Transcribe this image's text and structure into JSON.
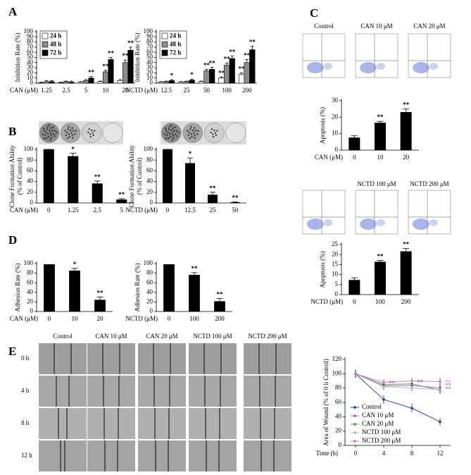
{
  "panels": [
    "A",
    "B",
    "C",
    "D",
    "E"
  ],
  "flow_labels_top": [
    "Control",
    "CAN 10 μM",
    "CAN 20 μM"
  ],
  "flow_labels_bottom": [
    "NCTD 100 μM",
    "NCTD 200 μM"
  ],
  "wound_columns": [
    "Control",
    "CAN 10 μM",
    "CAN 20 μM",
    "NCTD 100 μM",
    "NCTD 200 μM"
  ],
  "wound_rows": [
    "0 h",
    "4 h",
    "8 h",
    "12 h"
  ],
  "chart_data": [
    {
      "type": "bar",
      "ylabel": "Inhibition Rate (%)",
      "xlabel": "CAN (μM)",
      "categories": [
        "1.25",
        "2.5",
        "5",
        "10",
        "20"
      ],
      "ylim": [
        0,
        100
      ],
      "yticks": [
        0,
        10,
        20,
        30,
        40,
        50,
        60,
        70,
        80,
        90,
        100
      ],
      "series": [
        {
          "name": "24 h",
          "color": "#ffffff",
          "values": [
            1,
            1,
            2,
            3,
            5
          ],
          "errors": [
            1,
            1,
            1,
            1,
            2
          ],
          "significance": [
            null,
            null,
            null,
            null,
            null
          ]
        },
        {
          "name": "48 h",
          "color": "#8c8c8c",
          "values": [
            3,
            3,
            5,
            22,
            40
          ],
          "errors": [
            2,
            1,
            2,
            3,
            5
          ],
          "significance": [
            null,
            null,
            null,
            "**",
            "**"
          ]
        },
        {
          "name": "72 h",
          "color": "#000000",
          "values": [
            3,
            2,
            10,
            46,
            64
          ],
          "errors": [
            2,
            2,
            3,
            4,
            6
          ],
          "significance": [
            null,
            null,
            "**",
            "**",
            "**"
          ]
        }
      ]
    },
    {
      "type": "bar",
      "ylabel": "Inhibition Rate (%)",
      "xlabel": "NCTD (μM)",
      "categories": [
        "12.5",
        "25",
        "50",
        "100",
        "200"
      ],
      "ylim": [
        0,
        100
      ],
      "yticks": [
        0,
        10,
        20,
        30,
        40,
        50,
        60,
        70,
        80,
        90,
        100
      ],
      "series": [
        {
          "name": "24 h",
          "color": "#ffffff",
          "values": [
            2,
            2,
            3,
            10,
            17
          ],
          "errors": [
            1,
            1,
            1,
            2,
            3
          ],
          "significance": [
            null,
            null,
            null,
            "**",
            "**"
          ]
        },
        {
          "name": "48 h",
          "color": "#8c8c8c",
          "values": [
            3,
            3,
            24,
            35,
            40
          ],
          "errors": [
            1,
            1,
            3,
            4,
            6
          ],
          "significance": [
            null,
            null,
            "**",
            "**",
            "**"
          ]
        },
        {
          "name": "72 h",
          "color": "#000000",
          "values": [
            5,
            6,
            27,
            48,
            65
          ],
          "errors": [
            2,
            2,
            4,
            5,
            7
          ],
          "significance": [
            "*",
            "*",
            "**",
            "**",
            "**"
          ]
        }
      ]
    },
    {
      "type": "bar",
      "ylabel": [
        "Clone Formation Ability",
        "(% of Control)"
      ],
      "xlabel": "CAN (μM)",
      "categories": [
        "0",
        "1.25",
        "2.5",
        "5"
      ],
      "ylim": [
        0,
        100
      ],
      "yticks": [
        0,
        20,
        40,
        60,
        80,
        100
      ],
      "color": "#000000",
      "values": [
        100,
        87,
        36,
        6
      ],
      "errors": [
        0,
        6,
        5,
        2
      ],
      "significance": [
        null,
        "*",
        "**",
        "**"
      ]
    },
    {
      "type": "bar",
      "ylabel": [
        "Clone Formation Ability",
        "(% of Control)"
      ],
      "xlabel": "NCTD (μM)",
      "categories": [
        "0",
        "12.5",
        "25",
        "50"
      ],
      "ylim": [
        0,
        100
      ],
      "yticks": [
        0,
        20,
        40,
        60,
        80,
        100
      ],
      "color": "#000000",
      "values": [
        100,
        74,
        15,
        1
      ],
      "errors": [
        0,
        10,
        5,
        1
      ],
      "significance": [
        null,
        "*",
        "**",
        "**"
      ]
    },
    {
      "type": "bar",
      "ylabel": "Apoptosis (%)",
      "xlabel": "CAN (μM)",
      "categories": [
        "0",
        "10",
        "20"
      ],
      "ylim": [
        0,
        30
      ],
      "yticks": [
        0,
        10,
        20,
        30
      ],
      "color": "#000000",
      "values": [
        7.5,
        16.5,
        23
      ],
      "errors": [
        1.2,
        1,
        2
      ],
      "significance": [
        null,
        "**",
        "**"
      ]
    },
    {
      "type": "bar",
      "ylabel": "Apoptosis (%)",
      "xlabel": "NCTD (μM)",
      "categories": [
        "0",
        "100",
        "200"
      ],
      "ylim": [
        0,
        25
      ],
      "yticks": [
        0,
        5,
        10,
        15,
        20,
        25
      ],
      "color": "#000000",
      "values": [
        7.2,
        16.3,
        21.5
      ],
      "errors": [
        1.2,
        0.8,
        1.5
      ],
      "significance": [
        null,
        "**",
        "**"
      ]
    },
    {
      "type": "bar",
      "ylabel": "Adhesion Rate (%)",
      "xlabel": "CAN (μM)",
      "categories": [
        "0",
        "10",
        "20"
      ],
      "ylim": [
        0,
        100
      ],
      "yticks": [
        0,
        20,
        40,
        60,
        80,
        100
      ],
      "color": "#000000",
      "values": [
        98,
        85,
        24
      ],
      "errors": [
        0,
        5,
        6
      ],
      "significance": [
        null,
        "*",
        "**"
      ]
    },
    {
      "type": "bar",
      "ylabel": "Adhesion Rate (%)",
      "xlabel": "NCTD (μM)",
      "categories": [
        "0",
        "100",
        "200"
      ],
      "ylim": [
        0,
        100
      ],
      "yticks": [
        0,
        20,
        40,
        60,
        80,
        100
      ],
      "color": "#000000",
      "values": [
        98,
        76,
        21
      ],
      "errors": [
        0,
        5,
        6
      ],
      "significance": [
        null,
        "**",
        "**"
      ]
    },
    {
      "type": "line",
      "ylabel": "Area of Wound (% of 0 h Control)",
      "xlabel": "Time (h)",
      "x": [
        0,
        4,
        8,
        12
      ],
      "xlim": [
        -1.5,
        13.5
      ],
      "xticks": [
        0,
        4,
        8,
        12
      ],
      "ylim": [
        0,
        120
      ],
      "yticks": [
        0,
        20,
        40,
        60,
        80,
        100,
        120
      ],
      "series": [
        {
          "name": "Control",
          "color": "#3a3fa6",
          "values": [
            100,
            64,
            52,
            33
          ],
          "errors": [
            6,
            6,
            6,
            5
          ],
          "significance": [
            null,
            null,
            null,
            null
          ]
        },
        {
          "name": "CAN 10 μM",
          "color": "#cc55cc",
          "values": [
            100,
            83,
            84,
            80
          ],
          "errors": [
            5,
            5,
            5,
            5
          ],
          "significance": [
            null,
            "**",
            "**",
            "**"
          ]
        },
        {
          "name": "CAN 20 μM",
          "color": "#55aa55",
          "values": [
            100,
            85,
            86,
            77
          ],
          "errors": [
            5,
            5,
            5,
            5
          ],
          "significance": [
            null,
            "**",
            "**",
            "**"
          ]
        },
        {
          "name": "NCTD 100 μM",
          "color": "#b5b5b5",
          "values": [
            100,
            82,
            80,
            78
          ],
          "errors": [
            5,
            4,
            4,
            5
          ],
          "significance": [
            null,
            "**",
            "**",
            "**"
          ]
        },
        {
          "name": "NCTD 200 μM",
          "color": "#c47fdb",
          "values": [
            100,
            88,
            90,
            89
          ],
          "errors": [
            5,
            4,
            4,
            5
          ],
          "significance": [
            null,
            "**",
            "**",
            "**"
          ]
        }
      ]
    }
  ]
}
